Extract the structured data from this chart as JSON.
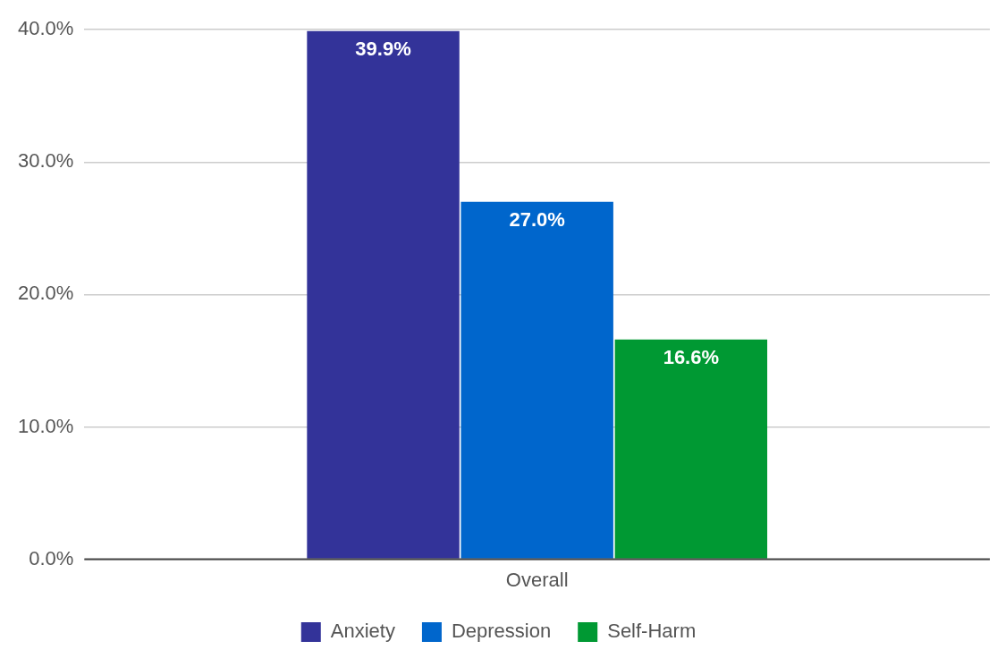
{
  "chart_data": {
    "type": "bar",
    "categories": [
      "Overall"
    ],
    "series": [
      {
        "name": "Anxiety",
        "color": "#333399",
        "values": [
          39.9
        ],
        "value_labels": [
          "39.9%"
        ]
      },
      {
        "name": "Depression",
        "color": "#0066cc",
        "values": [
          27.0
        ],
        "value_labels": [
          "27.0%"
        ]
      },
      {
        "name": "Self-Harm",
        "color": "#009933",
        "values": [
          16.6
        ],
        "value_labels": [
          "16.6%"
        ]
      }
    ],
    "ylim": [
      0,
      40
    ],
    "yticks": [
      {
        "value": 0,
        "label": "0.0%"
      },
      {
        "value": 10,
        "label": "10.0%"
      },
      {
        "value": 20,
        "label": "20.0%"
      },
      {
        "value": 30,
        "label": "30.0%"
      },
      {
        "value": 40,
        "label": "40.0%"
      }
    ],
    "grid": "y",
    "legend": "bottom"
  }
}
